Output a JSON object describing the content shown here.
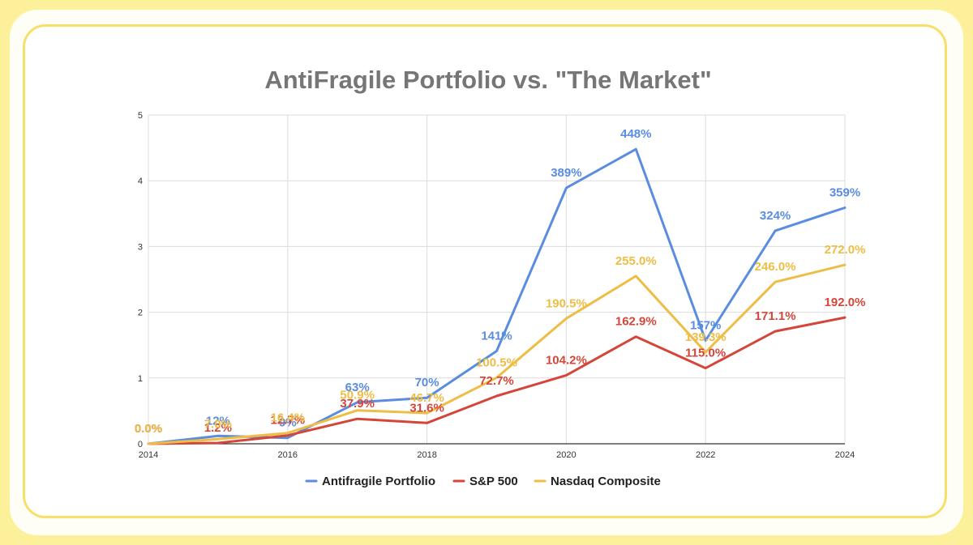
{
  "chart_data": {
    "type": "line",
    "title": "AntiFragile Portfolio vs. \"The Market\"",
    "xlabel": "",
    "ylabel": "",
    "x": [
      2014,
      2015,
      2016,
      2017,
      2018,
      2019,
      2020,
      2021,
      2022,
      2023,
      2024
    ],
    "xticks": [
      "2014",
      "2016",
      "2018",
      "2020",
      "2022",
      "2024"
    ],
    "yticks": [
      "0",
      "1",
      "2",
      "3",
      "4",
      "5"
    ],
    "ylim": [
      0,
      5
    ],
    "grid": true,
    "legend_position": "bottom",
    "series": [
      {
        "name": "Antifragile Portfolio",
        "color": "#5a8de0",
        "values": [
          0.0,
          0.12,
          0.09,
          0.63,
          0.7,
          1.41,
          3.89,
          4.48,
          1.57,
          3.24,
          3.59
        ],
        "labels": [
          "0.0%",
          "12%",
          "9%",
          "63%",
          "70%",
          "141%",
          "389%",
          "448%",
          "157%",
          "324%",
          "359%"
        ]
      },
      {
        "name": "S&P 500",
        "color": "#d5463a",
        "values": [
          0.0,
          0.012,
          0.127,
          0.379,
          0.316,
          0.727,
          1.042,
          1.629,
          1.15,
          1.711,
          1.92
        ],
        "labels": [
          "0.0%",
          "1.2%",
          "12.7%",
          "37.9%",
          "31.6%",
          "72.7%",
          "104.2%",
          "162.9%",
          "115.0%",
          "171.1%",
          "192.0%"
        ]
      },
      {
        "name": "Nasdaq Composite",
        "color": "#eebd45",
        "values": [
          0.0,
          0.07,
          0.164,
          0.509,
          0.467,
          1.005,
          1.905,
          2.55,
          1.393,
          2.46,
          2.72
        ],
        "labels": [
          "0.0%",
          "7.0%",
          "16.4%",
          "50.9%",
          "46.7%",
          "100.5%",
          "190.5%",
          "255.0%",
          "139.3%",
          "246.0%",
          "272.0%"
        ]
      }
    ]
  }
}
